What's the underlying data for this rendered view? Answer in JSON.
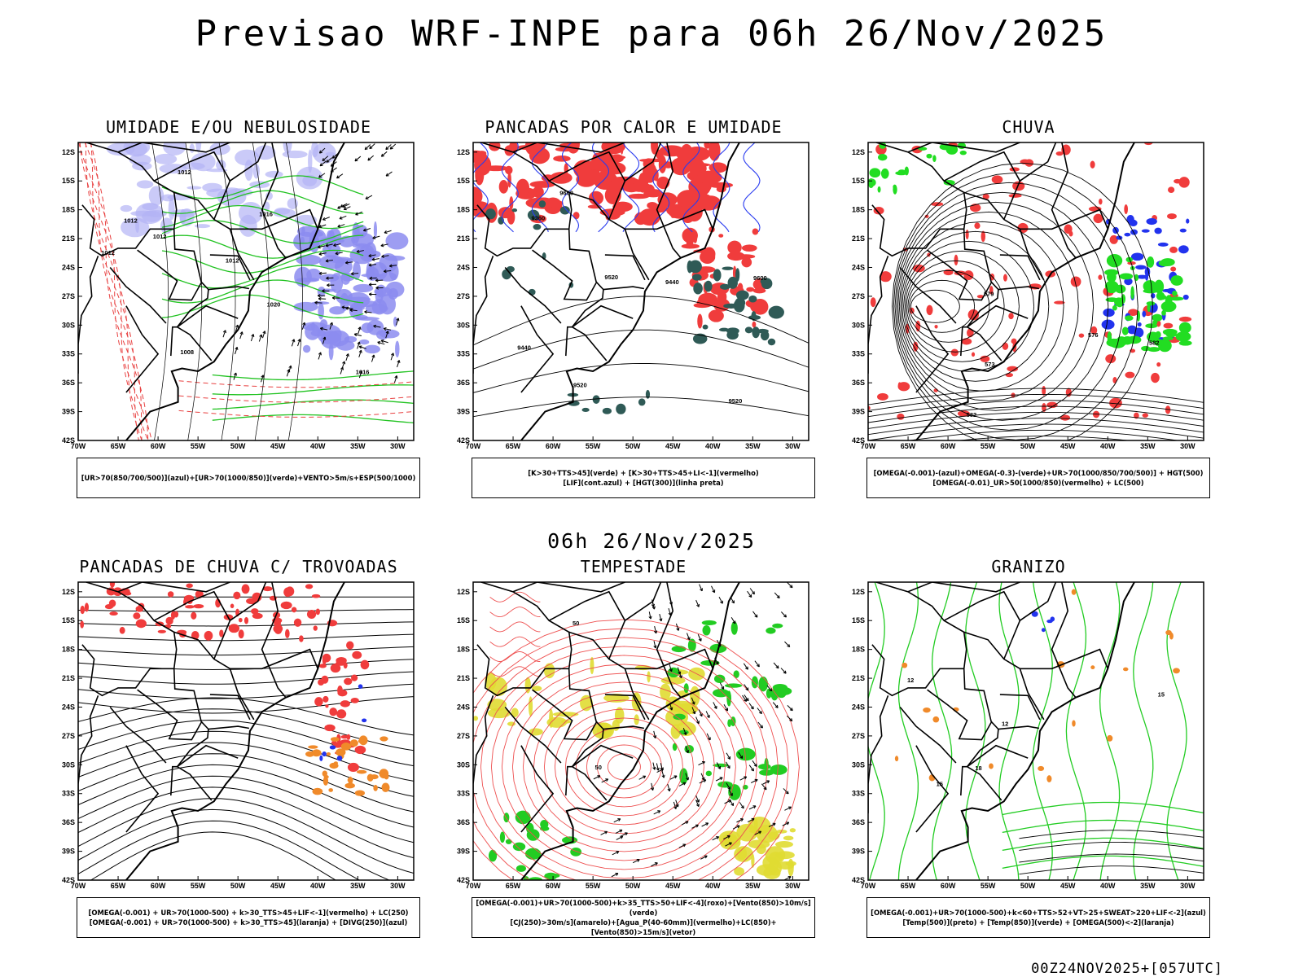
{
  "header": {
    "title": "Previsao WRF-INPE  para 06h 26/Nov/2025"
  },
  "mid_label": "06h 26/Nov/2025",
  "footer": "00Z24NOV2025+[057UTC]",
  "axes": {
    "lat_labels": [
      "12S",
      "15S",
      "18S",
      "21S",
      "24S",
      "27S",
      "30S",
      "33S",
      "36S",
      "39S",
      "42S"
    ],
    "lon_labels": [
      "70W",
      "65W",
      "60W",
      "55W",
      "50W",
      "45W",
      "40W",
      "35W",
      "30W"
    ]
  },
  "panels": [
    {
      "title": "UMIDADE E/OU NEBULOSIDADE",
      "legend": [
        "[UR>70(850/700/500)](azul)+[UR>70(1000/850)](verde)+VENTO>5m/s+ESP(500/1000)"
      ],
      "contour_labels": [
        "1012",
        "1012",
        "1012",
        "1012",
        "1008",
        "1016",
        "1012",
        "1020",
        "1016"
      ]
    },
    {
      "title": "PANCADAS POR CALOR E UMIDADE",
      "legend": [
        "[K>30+TTS>45](verde) + [K>30+TTS>45+LI<-1](vermelho)",
        "[LIF](cont.azul) + [HGT(300)](linha preta)"
      ],
      "contour_labels": [
        "9600",
        "9600",
        "9520",
        "9520",
        "9440",
        "9360",
        "9440",
        "9520"
      ]
    },
    {
      "title": "CHUVA",
      "legend": [
        "[OMEGA(-0.001)-(azul)+OMEGA(-0.3)-(verde)+UR>70(1000/850/700/500)] + HGT(500)",
        "[OMEGA(-0.01)_UR>50(1000/850)(vermelho) + LC(500)"
      ],
      "contour_labels": [
        "582",
        "576",
        "579",
        "573",
        "582"
      ]
    },
    {
      "title": "PANCADAS DE CHUVA C/ TROVOADAS",
      "legend": [
        "[OMEGA(-0.001) + UR>70(1000-500) + k>30_TTS>45+LIF<-1](vermelho) + LC(250)",
        "[OMEGA(-0.001) + UR>70(1000-500) + k>30_TTS>45](laranja) + [DIVG(250)](azul)"
      ],
      "contour_labels": []
    },
    {
      "title": "TEMPESTADE",
      "legend": [
        "[OMEGA(-0.001)+UR>70(1000-500)+k>35_TTS>50+LIF<-4](roxo)+[Vento(850)>10m/s](verde)",
        "[CJ(250)>30m/s](amarelo)+[Agua_P(40-60mm)](vermelho)+LC(850)+[Vento(850)>15m/s](vetor)"
      ],
      "contour_labels": [
        "50",
        "50"
      ]
    },
    {
      "title": "GRANIZO",
      "legend": [
        "[OMEGA(-0.001)+UR>70(1000-500)+k<60+TTS>52+VT>25+SWEAT>220+LIF<-2](azul)",
        "[Temp(500)](preto) + [Temp(850)](verde) + [OMEGA(500)<-2](laranja)"
      ],
      "contour_labels": [
        "12",
        "12",
        "15",
        "15",
        "18"
      ]
    }
  ]
}
